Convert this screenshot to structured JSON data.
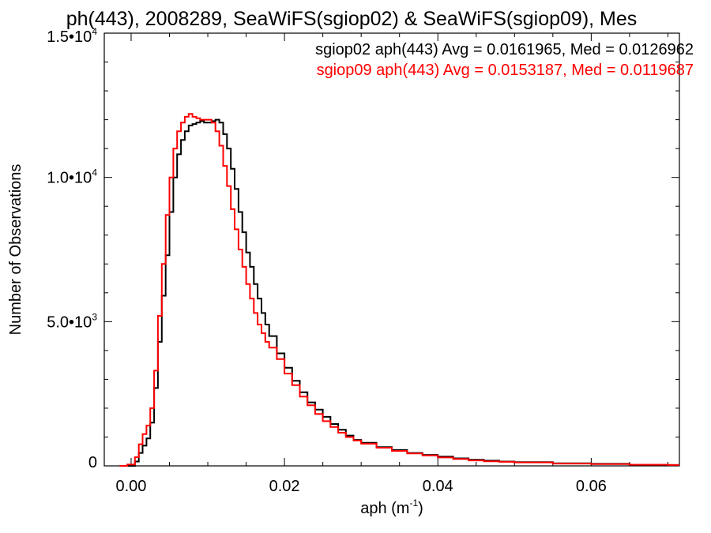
{
  "chart_data": {
    "type": "line",
    "title": "ph(443), 2008289, SeaWiFS(sgiop02) & SeaWiFS(sgiop09), Mes",
    "xlabel": "aph (m",
    "xlabel_sup": "-1",
    "xlabel_close": ")",
    "ylabel": "Number of Observations",
    "xlim": [
      -0.0035,
      0.0715
    ],
    "ylim": [
      0,
      15000
    ],
    "x_ticks": [
      {
        "value": 0.0,
        "label": "0.00"
      },
      {
        "value": 0.02,
        "label": "0.02"
      },
      {
        "value": 0.04,
        "label": "0.04"
      },
      {
        "value": 0.06,
        "label": "0.06"
      }
    ],
    "y_ticks": [
      {
        "value": 0,
        "label": "0",
        "sup": ""
      },
      {
        "value": 5000,
        "label": "5.0•10",
        "sup": "3"
      },
      {
        "value": 10000,
        "label": "1.0•10",
        "sup": "4"
      },
      {
        "value": 15000,
        "label": "1.5•10",
        "sup": "4"
      }
    ],
    "grid": false,
    "legend_position": "top-right",
    "series": [
      {
        "name": "sgiop02 aph(443) Avg = 0.0161965, Med = 0.0126962",
        "color": "#000000",
        "style": "step",
        "x": [
          -0.0005,
          0.0005,
          0.001,
          0.0015,
          0.002,
          0.0025,
          0.003,
          0.0035,
          0.004,
          0.0045,
          0.005,
          0.0055,
          0.006,
          0.0065,
          0.007,
          0.0075,
          0.008,
          0.0085,
          0.009,
          0.0095,
          0.01,
          0.0105,
          0.011,
          0.0115,
          0.012,
          0.0125,
          0.013,
          0.0135,
          0.014,
          0.0145,
          0.015,
          0.0155,
          0.016,
          0.0165,
          0.017,
          0.0175,
          0.018,
          0.019,
          0.02,
          0.021,
          0.022,
          0.023,
          0.024,
          0.025,
          0.026,
          0.027,
          0.028,
          0.029,
          0.03,
          0.032,
          0.034,
          0.036,
          0.038,
          0.04,
          0.042,
          0.044,
          0.046,
          0.048,
          0.05,
          0.055,
          0.06,
          0.065,
          0.07
        ],
        "y": [
          0,
          150,
          450,
          700,
          950,
          1500,
          2700,
          4300,
          5900,
          7300,
          8800,
          10000,
          10800,
          11300,
          11600,
          11800,
          11850,
          11900,
          11950,
          11900,
          11900,
          11950,
          12000,
          11900,
          11500,
          11000,
          10300,
          9600,
          8800,
          8100,
          7400,
          6900,
          6300,
          5800,
          5300,
          4900,
          4500,
          3900,
          3400,
          2950,
          2550,
          2200,
          1950,
          1700,
          1450,
          1250,
          1050,
          900,
          800,
          650,
          550,
          450,
          380,
          320,
          260,
          210,
          180,
          150,
          130,
          90,
          70,
          40,
          30
        ]
      },
      {
        "name": "sgiop09 aph(443) Avg = 0.0153187, Med = 0.0119687",
        "color": "#ff0000",
        "style": "step",
        "x": [
          -0.0015,
          -0.0005,
          0.0005,
          0.001,
          0.0015,
          0.002,
          0.0025,
          0.003,
          0.0035,
          0.004,
          0.0045,
          0.005,
          0.0055,
          0.006,
          0.0065,
          0.007,
          0.0075,
          0.008,
          0.0085,
          0.009,
          0.0095,
          0.01,
          0.0105,
          0.011,
          0.0115,
          0.012,
          0.0125,
          0.013,
          0.0135,
          0.014,
          0.0145,
          0.015,
          0.0155,
          0.016,
          0.0165,
          0.017,
          0.0175,
          0.018,
          0.019,
          0.02,
          0.021,
          0.022,
          0.023,
          0.024,
          0.025,
          0.026,
          0.027,
          0.028,
          0.029,
          0.03,
          0.032,
          0.034,
          0.036,
          0.038,
          0.04,
          0.042,
          0.044,
          0.046,
          0.048,
          0.05,
          0.055,
          0.06,
          0.065,
          0.07
        ],
        "y": [
          0,
          50,
          300,
          750,
          1100,
          1400,
          2000,
          3300,
          5200,
          7000,
          8700,
          10000,
          11000,
          11600,
          11900,
          12100,
          12200,
          12100,
          12050,
          12000,
          12000,
          12000,
          11900,
          11600,
          11100,
          10400,
          9700,
          8900,
          8200,
          7500,
          6900,
          6300,
          5800,
          5300,
          4900,
          4600,
          4300,
          4100,
          3700,
          3200,
          2800,
          2400,
          2100,
          1800,
          1550,
          1350,
          1150,
          1000,
          880,
          770,
          630,
          520,
          430,
          360,
          290,
          240,
          190,
          160,
          140,
          120,
          80,
          60,
          40,
          30
        ]
      }
    ]
  }
}
